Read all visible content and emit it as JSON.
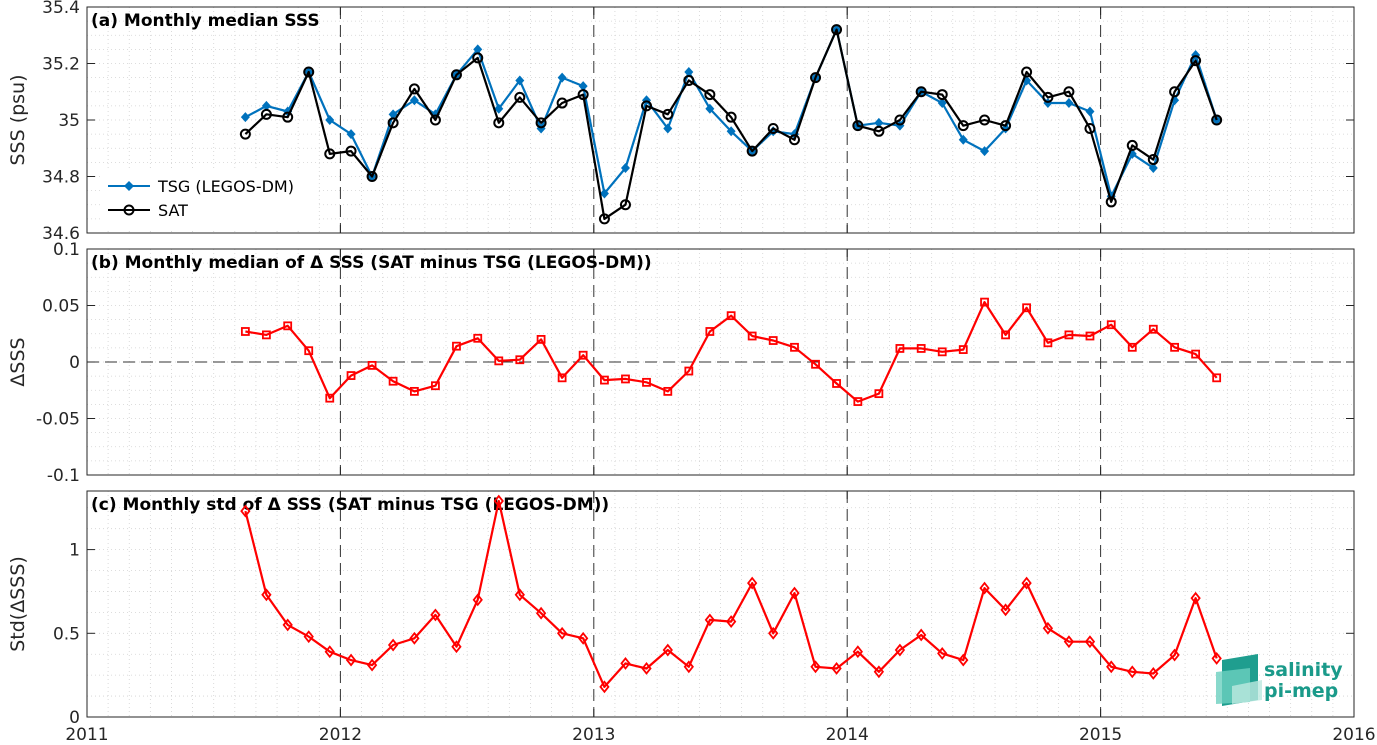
{
  "chart_data": [
    {
      "type": "line",
      "title": "(a) Monthly median SSS",
      "ylabel": "SSS (psu)",
      "xlim": [
        2011,
        2016
      ],
      "ylim": [
        34.6,
        35.4
      ],
      "yticks": [
        "34.6",
        "34.8",
        "35",
        "35.2",
        "35.4"
      ],
      "legend": "bottom-left",
      "grid": true,
      "series": [
        {
          "name": "TSG (LEGOS-DM)",
          "color": "#0072bd",
          "marker": "diamond",
          "x": [
            2011.625,
            2011.708,
            2011.792,
            2011.875,
            2011.958,
            2012.042,
            2012.125,
            2012.208,
            2012.292,
            2012.375,
            2012.458,
            2012.542,
            2012.625,
            2012.708,
            2012.792,
            2012.875,
            2012.958,
            2013.042,
            2013.125,
            2013.208,
            2013.292,
            2013.375,
            2013.458,
            2013.542,
            2013.625,
            2013.708,
            2013.792,
            2013.875,
            2013.958,
            2014.042,
            2014.125,
            2014.208,
            2014.292,
            2014.375,
            2014.458,
            2014.542,
            2014.625,
            2014.708,
            2014.792,
            2014.875,
            2014.958,
            2015.042,
            2015.125,
            2015.208,
            2015.292,
            2015.375,
            2015.458
          ],
          "y": [
            35.01,
            35.05,
            35.03,
            35.17,
            35.0,
            34.95,
            34.8,
            35.02,
            35.07,
            35.02,
            35.16,
            35.25,
            35.04,
            35.14,
            34.97,
            35.15,
            35.12,
            34.74,
            34.83,
            35.07,
            34.97,
            35.17,
            35.04,
            34.96,
            34.89,
            34.96,
            34.95,
            35.15,
            35.32,
            34.98,
            34.99,
            34.98,
            35.1,
            35.06,
            34.93,
            34.89,
            34.97,
            35.14,
            35.06,
            35.06,
            35.03,
            34.73,
            34.88,
            34.83,
            35.07,
            35.23,
            35.0
          ]
        },
        {
          "name": "SAT",
          "color": "#000000",
          "marker": "circle",
          "x": [
            2011.625,
            2011.708,
            2011.792,
            2011.875,
            2011.958,
            2012.042,
            2012.125,
            2012.208,
            2012.292,
            2012.375,
            2012.458,
            2012.542,
            2012.625,
            2012.708,
            2012.792,
            2012.875,
            2012.958,
            2013.042,
            2013.125,
            2013.208,
            2013.292,
            2013.375,
            2013.458,
            2013.542,
            2013.625,
            2013.708,
            2013.792,
            2013.875,
            2013.958,
            2014.042,
            2014.125,
            2014.208,
            2014.292,
            2014.375,
            2014.458,
            2014.542,
            2014.625,
            2014.708,
            2014.792,
            2014.875,
            2014.958,
            2015.042,
            2015.125,
            2015.208,
            2015.292,
            2015.375,
            2015.458
          ],
          "y": [
            34.95,
            35.02,
            35.01,
            35.17,
            34.88,
            34.89,
            34.8,
            34.99,
            35.11,
            35.0,
            35.16,
            35.22,
            34.99,
            35.08,
            34.99,
            35.06,
            35.09,
            34.65,
            34.7,
            35.05,
            35.02,
            35.14,
            35.09,
            35.01,
            34.89,
            34.97,
            34.93,
            35.15,
            35.32,
            34.98,
            34.96,
            35.0,
            35.1,
            35.09,
            34.98,
            35.0,
            34.98,
            35.17,
            35.08,
            35.1,
            34.97,
            34.71,
            34.91,
            34.86,
            35.1,
            35.21,
            35.0
          ]
        }
      ]
    },
    {
      "type": "line",
      "title": "(b) Monthly median of Δ SSS (SAT minus TSG (LEGOS-DM))",
      "ylabel": "ΔSSS",
      "xlim": [
        2011,
        2016
      ],
      "ylim": [
        -0.1,
        0.1
      ],
      "yticks": [
        "-0.1",
        "-0.05",
        "0",
        "0.05",
        "0.1"
      ],
      "grid": true,
      "zero_line": true,
      "series": [
        {
          "color": "#ff0000",
          "marker": "square",
          "x": [
            2011.625,
            2011.708,
            2011.792,
            2011.875,
            2011.958,
            2012.042,
            2012.125,
            2012.208,
            2012.292,
            2012.375,
            2012.458,
            2012.542,
            2012.625,
            2012.708,
            2012.792,
            2012.875,
            2012.958,
            2013.042,
            2013.125,
            2013.208,
            2013.292,
            2013.375,
            2013.458,
            2013.542,
            2013.625,
            2013.708,
            2013.792,
            2013.875,
            2013.958,
            2014.042,
            2014.125,
            2014.208,
            2014.292,
            2014.375,
            2014.458,
            2014.542,
            2014.625,
            2014.708,
            2014.792,
            2014.875,
            2014.958,
            2015.042,
            2015.125,
            2015.208,
            2015.292,
            2015.375,
            2015.458
          ],
          "y": [
            0.027,
            0.024,
            0.032,
            0.01,
            -0.032,
            -0.012,
            -0.003,
            -0.017,
            -0.026,
            -0.021,
            0.014,
            0.021,
            0.001,
            0.002,
            0.02,
            -0.014,
            0.006,
            -0.016,
            -0.015,
            -0.018,
            -0.026,
            -0.008,
            0.027,
            0.041,
            0.023,
            0.019,
            0.013,
            -0.002,
            -0.019,
            -0.035,
            -0.028,
            0.012,
            0.012,
            0.009,
            0.011,
            0.053,
            0.024,
            0.048,
            0.017,
            0.024,
            0.023,
            0.033,
            0.013,
            0.029,
            0.013,
            0.007,
            -0.014
          ]
        }
      ]
    },
    {
      "type": "line",
      "title": "(c) Monthly std of Δ SSS (SAT minus TSG (LEGOS-DM))",
      "ylabel": "Std(ΔSSS)",
      "xlim": [
        2011,
        2016
      ],
      "ylim": [
        0,
        1.35
      ],
      "yticks": [
        "0",
        "0.5",
        "1"
      ],
      "xticks": [
        "2011",
        "2012",
        "2013",
        "2014",
        "2015",
        "2016"
      ],
      "grid": true,
      "series": [
        {
          "color": "#ff0000",
          "marker": "diamond",
          "x": [
            2011.625,
            2011.708,
            2011.792,
            2011.875,
            2011.958,
            2012.042,
            2012.125,
            2012.208,
            2012.292,
            2012.375,
            2012.458,
            2012.542,
            2012.625,
            2012.708,
            2012.792,
            2012.875,
            2012.958,
            2013.042,
            2013.125,
            2013.208,
            2013.292,
            2013.375,
            2013.458,
            2013.542,
            2013.625,
            2013.708,
            2013.792,
            2013.875,
            2013.958,
            2014.042,
            2014.125,
            2014.208,
            2014.292,
            2014.375,
            2014.458,
            2014.542,
            2014.625,
            2014.708,
            2014.792,
            2014.875,
            2014.958,
            2015.042,
            2015.125,
            2015.208,
            2015.292,
            2015.375,
            2015.458
          ],
          "y": [
            1.23,
            0.73,
            0.55,
            0.48,
            0.39,
            0.34,
            0.31,
            0.43,
            0.47,
            0.61,
            0.42,
            0.7,
            1.29,
            0.73,
            0.62,
            0.5,
            0.47,
            0.18,
            0.32,
            0.29,
            0.4,
            0.3,
            0.58,
            0.57,
            0.8,
            0.5,
            0.74,
            0.3,
            0.29,
            0.39,
            0.27,
            0.4,
            0.49,
            0.38,
            0.34,
            0.77,
            0.64,
            0.8,
            0.53,
            0.45,
            0.45,
            0.3,
            0.27,
            0.26,
            0.37,
            0.71,
            0.35
          ]
        }
      ]
    }
  ],
  "logo": {
    "line1": "salinity",
    "line2": "pi-mep"
  }
}
